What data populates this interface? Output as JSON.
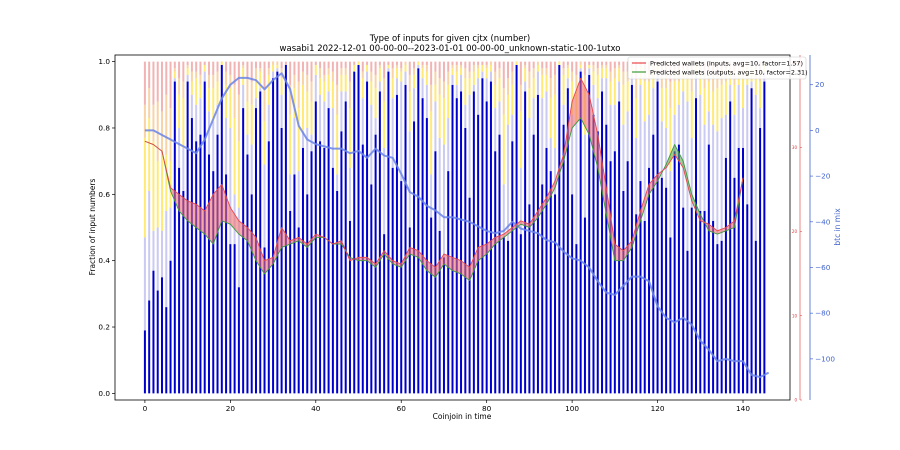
{
  "chart_data": {
    "type": "bar",
    "title": "Type of inputs for given cjtx (number)",
    "subtitle": "wasabi1 2022-12-01 00-00-00--2023-01-01 00-00-00_unknown-static-100-1utxo",
    "xlabel": "Coinjoin in time",
    "ylabel": "Fraction of input numbers",
    "y2label": "btc in mix",
    "xlim": [
      -7,
      151
    ],
    "ylim": [
      -0.02,
      1.02
    ],
    "y2lim": [
      -118,
      33
    ],
    "x_ticks": [
      0,
      20,
      40,
      60,
      80,
      100,
      120,
      140
    ],
    "y_ticks": [
      0.0,
      0.2,
      0.4,
      0.6,
      0.8,
      1.0
    ],
    "y2_ticks": [
      20,
      0,
      -20,
      -40,
      -60,
      -80,
      -100
    ],
    "y3_ticks": [
      40,
      30,
      20,
      10,
      0
    ],
    "grid": false,
    "legend_position": "top-right",
    "colors": {
      "fresh_bar": "#0000cc",
      "remixed_bar": "#b8b8ee",
      "yellow_bar": "#ffe34a",
      "orange_bar": "#f5c488",
      "pink_bar": "#ee9999",
      "wallets_inputs": "#e8474a",
      "wallets_outputs": "#3a9a3a",
      "fill_up": "#f07070",
      "fill_down": "#66aa55",
      "btc_line": "#6a84e6",
      "axis_blue": "#4466cc",
      "axis_red": "#dd3333"
    },
    "series": [
      {
        "name": "Predicted wallets (inputs, avg=10, factor=1.57)",
        "role": "inputs",
        "x": [
          0,
          2,
          4,
          6,
          8,
          10,
          12,
          14,
          16,
          18,
          20,
          22,
          24,
          26,
          28,
          30,
          32,
          34,
          36,
          38,
          40,
          42,
          44,
          46,
          48,
          50,
          52,
          54,
          56,
          58,
          60,
          62,
          64,
          66,
          68,
          70,
          72,
          74,
          76,
          78,
          80,
          82,
          84,
          86,
          88,
          90,
          92,
          94,
          96,
          98,
          100,
          102,
          104,
          106,
          108,
          110,
          112,
          114,
          116,
          118,
          120,
          122,
          124,
          126,
          128,
          130,
          132,
          134,
          136,
          138,
          140
        ],
        "values": [
          0.76,
          0.75,
          0.73,
          0.62,
          0.6,
          0.58,
          0.57,
          0.55,
          0.6,
          0.63,
          0.56,
          0.52,
          0.5,
          0.47,
          0.4,
          0.41,
          0.5,
          0.46,
          0.47,
          0.45,
          0.48,
          0.47,
          0.45,
          0.46,
          0.4,
          0.41,
          0.41,
          0.39,
          0.43,
          0.4,
          0.39,
          0.44,
          0.43,
          0.4,
          0.38,
          0.42,
          0.41,
          0.4,
          0.38,
          0.44,
          0.45,
          0.47,
          0.48,
          0.5,
          0.52,
          0.51,
          0.55,
          0.59,
          0.64,
          0.72,
          0.88,
          0.95,
          0.9,
          0.78,
          0.62,
          0.45,
          0.43,
          0.46,
          0.55,
          0.63,
          0.66,
          0.68,
          0.72,
          0.68,
          0.58,
          0.52,
          0.51,
          0.49,
          0.5,
          0.52,
          0.65
        ]
      },
      {
        "name": "Predicted wallets (outputs, avg=10, factor=2.31)",
        "role": "outputs",
        "x": [
          0,
          2,
          4,
          6,
          8,
          10,
          12,
          14,
          16,
          18,
          20,
          22,
          24,
          26,
          28,
          30,
          32,
          34,
          36,
          38,
          40,
          42,
          44,
          46,
          48,
          50,
          52,
          54,
          56,
          58,
          60,
          62,
          64,
          66,
          68,
          70,
          72,
          74,
          76,
          78,
          80,
          82,
          84,
          86,
          88,
          90,
          92,
          94,
          96,
          98,
          100,
          102,
          104,
          106,
          108,
          110,
          112,
          114,
          116,
          118,
          120,
          122,
          124,
          126,
          128,
          130,
          132,
          134,
          136,
          138,
          140
        ],
        "values": [
          0.76,
          0.75,
          0.73,
          0.61,
          0.55,
          0.52,
          0.5,
          0.48,
          0.45,
          0.52,
          0.51,
          0.48,
          0.46,
          0.4,
          0.36,
          0.39,
          0.44,
          0.45,
          0.46,
          0.44,
          0.47,
          0.47,
          0.45,
          0.45,
          0.41,
          0.4,
          0.4,
          0.38,
          0.42,
          0.39,
          0.38,
          0.42,
          0.41,
          0.37,
          0.35,
          0.39,
          0.37,
          0.36,
          0.34,
          0.4,
          0.42,
          0.45,
          0.47,
          0.49,
          0.51,
          0.5,
          0.53,
          0.57,
          0.62,
          0.7,
          0.8,
          0.83,
          0.78,
          0.68,
          0.54,
          0.4,
          0.4,
          0.44,
          0.52,
          0.6,
          0.64,
          0.69,
          0.75,
          0.7,
          0.6,
          0.54,
          0.49,
          0.48,
          0.49,
          0.5,
          0.65
        ]
      },
      {
        "name": "btc in mix",
        "role": "btc",
        "x": [
          0,
          2,
          4,
          6,
          8,
          10,
          12,
          14,
          16,
          18,
          20,
          22,
          24,
          26,
          28,
          30,
          32,
          34,
          36,
          38,
          40,
          42,
          44,
          46,
          48,
          50,
          52,
          54,
          56,
          58,
          60,
          62,
          64,
          66,
          68,
          70,
          72,
          74,
          76,
          78,
          80,
          82,
          84,
          86,
          88,
          90,
          92,
          94,
          96,
          98,
          100,
          102,
          104,
          106,
          108,
          110,
          112,
          114,
          116,
          118,
          120,
          122,
          124,
          126,
          128,
          130,
          132,
          134,
          136,
          138,
          140,
          142,
          144,
          146
        ],
        "values": [
          0,
          0,
          -2,
          -4,
          -6,
          -8,
          -10,
          -4,
          5,
          14,
          20,
          23,
          23,
          22,
          18,
          22,
          25,
          18,
          2,
          -4,
          -6,
          -7,
          -8,
          -8,
          -10,
          -9,
          -12,
          -8,
          -11,
          -12,
          -19,
          -27,
          -29,
          -33,
          -35,
          -38,
          -38,
          -39,
          -40,
          -42,
          -44,
          -45,
          -44,
          -40,
          -43,
          -44,
          -45,
          -48,
          -49,
          -53,
          -56,
          -57,
          -60,
          -66,
          -71,
          -72,
          -68,
          -64,
          -64,
          -66,
          -77,
          -82,
          -84,
          -82,
          -85,
          -92,
          -96,
          -101,
          -100,
          -101,
          -101,
          -107,
          -108,
          -106
        ]
      }
    ],
    "bars": {
      "count": 146,
      "stack_order": [
        "fresh",
        "remixed",
        "yellow",
        "orange",
        "pink"
      ],
      "fresh": [
        0.19,
        0.28,
        0.37,
        0.31,
        0.35,
        0.26,
        0.4,
        0.94,
        0.68,
        0.61,
        0.94,
        0.83,
        0.76,
        0.78,
        0.94,
        0.72,
        0.67,
        0.78,
        0.99,
        0.66,
        0.45,
        0.45,
        0.32,
        0.86,
        0.72,
        0.6,
        0.86,
        0.91,
        0.44,
        0.76,
        0.95,
        0.97,
        0.8,
        0.99,
        0.55,
        0.66,
        0.5,
        0.74,
        0.6,
        0.73,
        0.88,
        0.76,
        0.74,
        0.86,
        0.68,
        0.61,
        0.79,
        0.88,
        0.52,
        0.97,
        0.99,
        0.75,
        0.94,
        0.63,
        0.78,
        0.91,
        0.48,
        0.97,
        0.68,
        0.9,
        0.64,
        0.93,
        0.5,
        0.82,
        0.98,
        0.89,
        0.83,
        0.53,
        0.73,
        0.49,
        0.41,
        0.67,
        0.93,
        0.89,
        0.91,
        0.8,
        0.59,
        0.91,
        0.84,
        0.95,
        0.88,
        0.94,
        0.73,
        0.78,
        0.47,
        0.46,
        0.76,
        0.99,
        0.48,
        0.91,
        0.57,
        0.78,
        0.9,
        0.63,
        0.74,
        0.67,
        0.6,
        0.99,
        0.81,
        0.92,
        0.6,
        0.45,
        0.97,
        0.53,
        0.96,
        0.84,
        0.79,
        0.91,
        0.81,
        0.7,
        0.73,
        0.88,
        0.61,
        0.7,
        0.93,
        0.54,
        0.64,
        0.52,
        0.68,
        0.78,
        0.94,
        0.65,
        0.62,
        0.47,
        0.73,
        0.75,
        0.56,
        0.43,
        0.56,
        0.89,
        0.55,
        0.55,
        0.75,
        0.52,
        0.45,
        0.46,
        0.71,
        0.88,
        0.65,
        0.74,
        0.74,
        0.57,
        0.92,
        0.46,
        0.8,
        0.94
      ],
      "remixed": [
        0.28,
        0.33,
        0.12,
        0.19,
        0.14,
        0.29,
        0.16,
        0.01,
        0.12,
        0.13,
        0.02,
        0.07,
        0.11,
        0.11,
        0.03,
        0.13,
        0.15,
        0.09,
        0.0,
        0.17,
        0.35,
        0.15,
        0.24,
        0.07,
        0.06,
        0.15,
        0.03,
        0.01,
        0.25,
        0.11,
        0.02,
        0.01,
        0.1,
        0.0,
        0.11,
        0.17,
        0.17,
        0.05,
        0.2,
        0.05,
        0.08,
        0.14,
        0.14,
        0.05,
        0.18,
        0.05,
        0.12,
        0.03,
        0.16,
        0.0,
        0.0,
        0.14,
        0.03,
        0.24,
        0.05,
        0.03,
        0.26,
        0.01,
        0.21,
        0.05,
        0.3,
        0.04,
        0.29,
        0.1,
        0.01,
        0.06,
        0.1,
        0.13,
        0.15,
        0.28,
        0.34,
        0.16,
        0.03,
        0.04,
        0.05,
        0.07,
        0.31,
        0.02,
        0.11,
        0.02,
        0.07,
        0.03,
        0.13,
        0.1,
        0.16,
        0.35,
        0.08,
        0.0,
        0.2,
        0.03,
        0.26,
        0.11,
        0.07,
        0.26,
        0.17,
        0.1,
        0.14,
        0.0,
        0.06,
        0.03,
        0.24,
        0.37,
        0.01,
        0.25,
        0.02,
        0.09,
        0.1,
        0.04,
        0.14,
        0.17,
        0.14,
        0.06,
        0.2,
        0.15,
        0.03,
        0.23,
        0.29,
        0.3,
        0.16,
        0.14,
        0.03,
        0.17,
        0.18,
        0.2,
        0.11,
        0.12,
        0.35,
        0.45,
        0.21,
        0.07,
        0.35,
        0.26,
        0.1,
        0.29,
        0.34,
        0.37,
        0.13,
        0.05,
        0.19,
        0.19,
        0.12,
        0.36,
        0.02,
        0.44,
        0.06,
        0.03
      ],
      "yellow": [
        0.3,
        0.22,
        0.27,
        0.2,
        0.23,
        0.17,
        0.14,
        0.02,
        0.1,
        0.15,
        0.02,
        0.04,
        0.08,
        0.04,
        0.02,
        0.07,
        0.1,
        0.07,
        0.01,
        0.1,
        0.12,
        0.23,
        0.2,
        0.05,
        0.1,
        0.12,
        0.06,
        0.05,
        0.13,
        0.09,
        0.02,
        0.01,
        0.05,
        0.0,
        0.18,
        0.09,
        0.19,
        0.14,
        0.11,
        0.1,
        0.03,
        0.05,
        0.06,
        0.05,
        0.08,
        0.18,
        0.05,
        0.05,
        0.18,
        0.02,
        0.01,
        0.06,
        0.02,
        0.07,
        0.09,
        0.04,
        0.14,
        0.01,
        0.06,
        0.03,
        0.03,
        0.02,
        0.12,
        0.04,
        0.01,
        0.03,
        0.04,
        0.19,
        0.05,
        0.13,
        0.14,
        0.1,
        0.02,
        0.04,
        0.02,
        0.08,
        0.05,
        0.04,
        0.03,
        0.02,
        0.03,
        0.02,
        0.07,
        0.07,
        0.21,
        0.09,
        0.09,
        0.01,
        0.17,
        0.04,
        0.09,
        0.06,
        0.02,
        0.07,
        0.05,
        0.12,
        0.16,
        0.01,
        0.09,
        0.03,
        0.1,
        0.1,
        0.01,
        0.13,
        0.01,
        0.04,
        0.07,
        0.03,
        0.03,
        0.07,
        0.08,
        0.04,
        0.12,
        0.09,
        0.02,
        0.12,
        0.05,
        0.12,
        0.1,
        0.05,
        0.02,
        0.1,
        0.12,
        0.19,
        0.1,
        0.07,
        0.05,
        0.07,
        0.14,
        0.03,
        0.06,
        0.11,
        0.09,
        0.1,
        0.13,
        0.1,
        0.1,
        0.04,
        0.09,
        0.04,
        0.09,
        0.04,
        0.04,
        0.05,
        0.08,
        0.02
      ],
      "orange": [
        0.1,
        0.09,
        0.11,
        0.18,
        0.13,
        0.18,
        0.16,
        0.01,
        0.05,
        0.05,
        0.01,
        0.03,
        0.02,
        0.03,
        0.0,
        0.04,
        0.04,
        0.03,
        0.0,
        0.04,
        0.04,
        0.1,
        0.14,
        0.01,
        0.07,
        0.07,
        0.03,
        0.01,
        0.1,
        0.02,
        0.01,
        0.01,
        0.03,
        0.0,
        0.09,
        0.04,
        0.08,
        0.04,
        0.05,
        0.06,
        0.0,
        0.03,
        0.02,
        0.02,
        0.03,
        0.09,
        0.02,
        0.02,
        0.08,
        0.0,
        0.0,
        0.02,
        0.0,
        0.03,
        0.04,
        0.01,
        0.07,
        0.0,
        0.03,
        0.01,
        0.01,
        0.01,
        0.05,
        0.02,
        0.0,
        0.01,
        0.02,
        0.08,
        0.04,
        0.05,
        0.05,
        0.04,
        0.01,
        0.02,
        0.01,
        0.03,
        0.02,
        0.02,
        0.01,
        0.0,
        0.01,
        0.01,
        0.04,
        0.03,
        0.08,
        0.05,
        0.04,
        0.0,
        0.08,
        0.01,
        0.05,
        0.03,
        0.01,
        0.02,
        0.02,
        0.06,
        0.06,
        0.0,
        0.02,
        0.01,
        0.03,
        0.04,
        0.01,
        0.05,
        0.0,
        0.02,
        0.02,
        0.01,
        0.01,
        0.03,
        0.03,
        0.01,
        0.04,
        0.03,
        0.01,
        0.06,
        0.01,
        0.03,
        0.03,
        0.02,
        0.01,
        0.04,
        0.05,
        0.08,
        0.03,
        0.03,
        0.02,
        0.02,
        0.05,
        0.01,
        0.02,
        0.04,
        0.03,
        0.05,
        0.04,
        0.04,
        0.04,
        0.02,
        0.04,
        0.02,
        0.03,
        0.02,
        0.01,
        0.03,
        0.03,
        0.01
      ]
    }
  }
}
